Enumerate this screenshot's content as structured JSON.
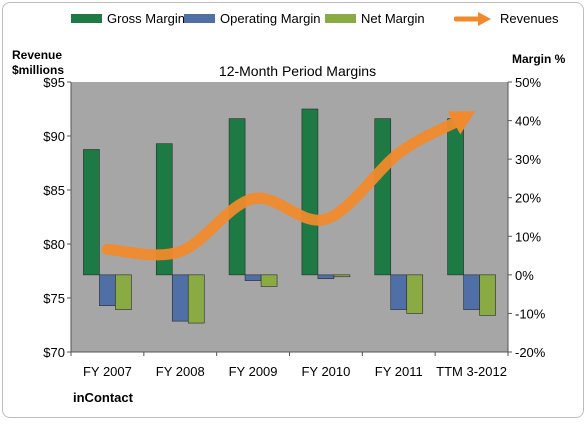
{
  "chart_data": {
    "type": "bar",
    "title": "12-Month Period Margins",
    "categories": [
      "FY 2007",
      "FY 2008",
      "FY 2009",
      "FY 2010",
      "FY 2011",
      "TTM 3-2012"
    ],
    "series": [
      {
        "name": "Gross Margin",
        "axis": "right",
        "values": [
          32.5,
          34,
          40.5,
          43,
          40.5,
          40.5
        ],
        "color": "#1e7a45"
      },
      {
        "name": "Operating Margin",
        "axis": "right",
        "values": [
          -8,
          -12,
          -1.5,
          -1,
          -9,
          -9
        ],
        "color": "#4f6fa6"
      },
      {
        "name": "Net Margin",
        "axis": "right",
        "values": [
          -9,
          -12.5,
          -3,
          -0.5,
          -10,
          -10.5
        ],
        "color": "#8aaa44"
      },
      {
        "name": "Revenues",
        "axis": "left",
        "type": "line",
        "values": [
          79.5,
          79.3,
          84.2,
          82.3,
          88.4,
          92.1
        ],
        "color": "#f08a2c"
      }
    ],
    "y_left": {
      "label": "Revenue $millions",
      "ylim": [
        70,
        95
      ],
      "ticks": [
        "$70",
        "$75",
        "$80",
        "$85",
        "$90",
        "$95"
      ]
    },
    "y_right": {
      "label": "Margin %",
      "ylim": [
        -20,
        50
      ],
      "ticks": [
        "-20%",
        "-10%",
        "0%",
        "10%",
        "20%",
        "30%",
        "40%",
        "50%"
      ]
    },
    "legend_position": "top",
    "grid": false,
    "plot_background": "#a6a6a6"
  },
  "y_left_caption": [
    "Revenue",
    "$millions"
  ],
  "y_right_caption": "Margin %",
  "footer": "inContact"
}
